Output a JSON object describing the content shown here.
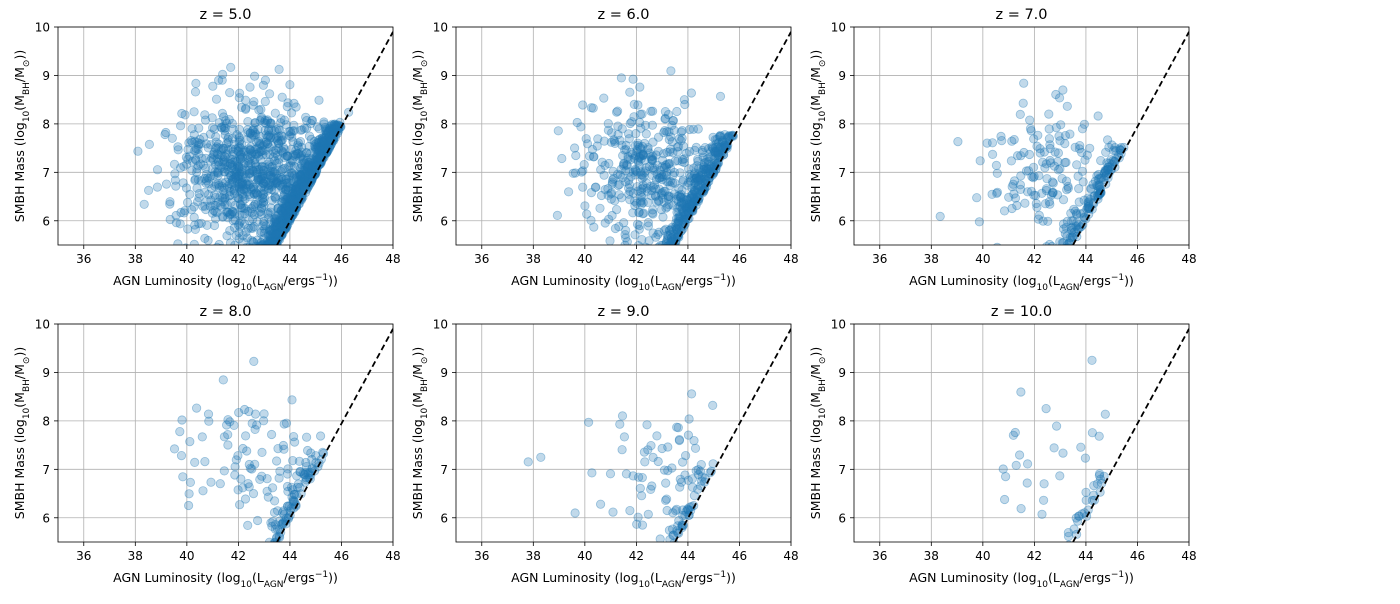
{
  "chart_data": [
    {
      "type": "scatter",
      "title": "z = 5.0",
      "sample_points": 1500,
      "xlabel": "AGN Luminosity (log10(LAGN/ergs−1))",
      "ylabel": "SMBH Mass (log10(MBH/M⊙))",
      "xlim": [
        35,
        48
      ],
      "ylim": [
        5.5,
        10
      ],
      "xticks": [
        "36",
        "38",
        "40",
        "42",
        "44",
        "46",
        "48"
      ],
      "yticks": [
        "6",
        "7",
        "8",
        "9",
        "10"
      ],
      "grid": true,
      "reference_line": {
        "style": "dashed",
        "color": "#000000",
        "x": [
          43.5,
          48
        ],
        "y": [
          5.5,
          9.9
        ]
      }
    },
    {
      "type": "scatter",
      "title": "z = 6.0",
      "sample_points": 700,
      "xlabel": "AGN Luminosity (log10(LAGN/ergs−1))",
      "ylabel": "SMBH Mass (log10(MBH/M⊙))",
      "xlim": [
        35,
        48
      ],
      "ylim": [
        5.5,
        10
      ],
      "xticks": [
        "36",
        "38",
        "40",
        "42",
        "44",
        "46",
        "48"
      ],
      "yticks": [
        "6",
        "7",
        "8",
        "9",
        "10"
      ],
      "grid": true,
      "reference_line": {
        "style": "dashed",
        "color": "#000000",
        "x": [
          43.5,
          48
        ],
        "y": [
          5.5,
          9.9
        ]
      }
    },
    {
      "type": "scatter",
      "title": "z = 7.0",
      "sample_points": 280,
      "xlabel": "AGN Luminosity (log10(LAGN/ergs−1))",
      "ylabel": "SMBH Mass (log10(MBH/M⊙))",
      "xlim": [
        35,
        48
      ],
      "ylim": [
        5.5,
        10
      ],
      "xticks": [
        "36",
        "38",
        "40",
        "42",
        "44",
        "46",
        "48"
      ],
      "yticks": [
        "6",
        "7",
        "8",
        "9",
        "10"
      ],
      "grid": true,
      "reference_line": {
        "style": "dashed",
        "color": "#000000",
        "x": [
          43.5,
          48
        ],
        "y": [
          5.5,
          9.9
        ]
      }
    },
    {
      "type": "scatter",
      "title": "z = 8.0",
      "sample_points": 180,
      "xlabel": "AGN Luminosity (log10(LAGN/ergs−1))",
      "ylabel": "SMBH Mass (log10(MBH/M⊙))",
      "xlim": [
        35,
        48
      ],
      "ylim": [
        5.5,
        10
      ],
      "xticks": [
        "36",
        "38",
        "40",
        "42",
        "44",
        "46",
        "48"
      ],
      "yticks": [
        "6",
        "7",
        "8",
        "9",
        "10"
      ],
      "grid": true,
      "reference_line": {
        "style": "dashed",
        "color": "#000000",
        "x": [
          43.5,
          48
        ],
        "y": [
          5.5,
          9.9
        ]
      }
    },
    {
      "type": "scatter",
      "title": "z = 9.0",
      "sample_points": 110,
      "xlabel": "AGN Luminosity (log10(LAGN/ergs−1))",
      "ylabel": "SMBH Mass (log10(MBH/M⊙))",
      "xlim": [
        35,
        48
      ],
      "ylim": [
        5.5,
        10
      ],
      "xticks": [
        "36",
        "38",
        "40",
        "42",
        "44",
        "46",
        "48"
      ],
      "yticks": [
        "6",
        "7",
        "8",
        "9",
        "10"
      ],
      "grid": true,
      "reference_line": {
        "style": "dashed",
        "color": "#000000",
        "x": [
          43.5,
          48
        ],
        "y": [
          5.5,
          9.9
        ]
      }
    },
    {
      "type": "scatter",
      "title": "z = 10.0",
      "sample_points": 55,
      "xlabel": "AGN Luminosity (log10(LAGN/ergs−1))",
      "ylabel": "SMBH Mass (log10(MBH/M⊙))",
      "xlim": [
        35,
        48
      ],
      "ylim": [
        5.5,
        10
      ],
      "xticks": [
        "36",
        "38",
        "40",
        "42",
        "44",
        "46",
        "48"
      ],
      "yticks": [
        "6",
        "7",
        "8",
        "9",
        "10"
      ],
      "grid": true,
      "reference_line": {
        "style": "dashed",
        "color": "#000000",
        "x": [
          43.5,
          48
        ],
        "y": [
          5.5,
          9.9
        ]
      }
    }
  ],
  "colors": {
    "points": "#1f77b4",
    "grid": "#b0b0b0",
    "line": "#000000"
  }
}
